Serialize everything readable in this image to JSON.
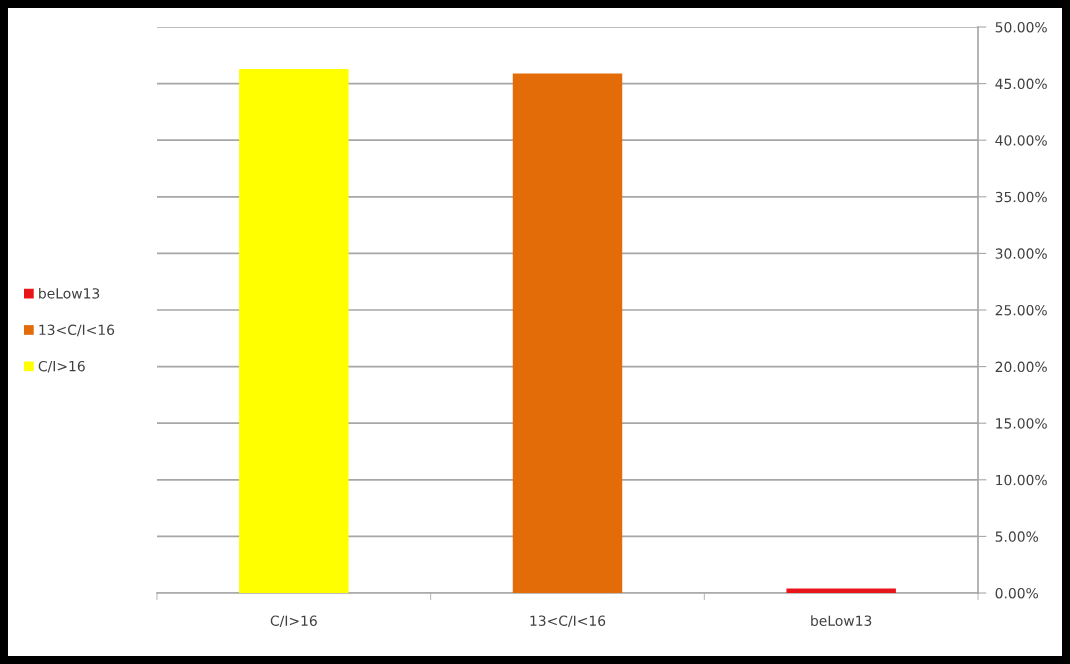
{
  "chart_data": {
    "type": "bar",
    "categories": [
      "C/I>16",
      "13<C/I<16",
      "beLow13"
    ],
    "series": [
      {
        "name": "beLow13",
        "color": "#e8161b",
        "values": [
          null,
          null,
          0.4
        ]
      },
      {
        "name": "13<C/I<16",
        "color": "#e36c09",
        "values": [
          null,
          45.9,
          null
        ]
      },
      {
        "name": "C/I>16",
        "color": "#ffff00",
        "values": [
          46.3,
          null,
          null
        ]
      }
    ],
    "ylim": [
      0,
      50
    ],
    "yticks": [
      {
        "value": 0,
        "label": "0.00%"
      },
      {
        "value": 5,
        "label": "5.00%"
      },
      {
        "value": 10,
        "label": "10.00%"
      },
      {
        "value": 15,
        "label": "15.00%"
      },
      {
        "value": 20,
        "label": "20.00%"
      },
      {
        "value": 25,
        "label": "25.00%"
      },
      {
        "value": 30,
        "label": "30.00%"
      },
      {
        "value": 35,
        "label": "35.00%"
      },
      {
        "value": 40,
        "label": "40.00%"
      },
      {
        "value": 45,
        "label": "45.00%"
      },
      {
        "value": 50,
        "label": "50.00%"
      }
    ],
    "grid": "y",
    "legend": "left"
  }
}
